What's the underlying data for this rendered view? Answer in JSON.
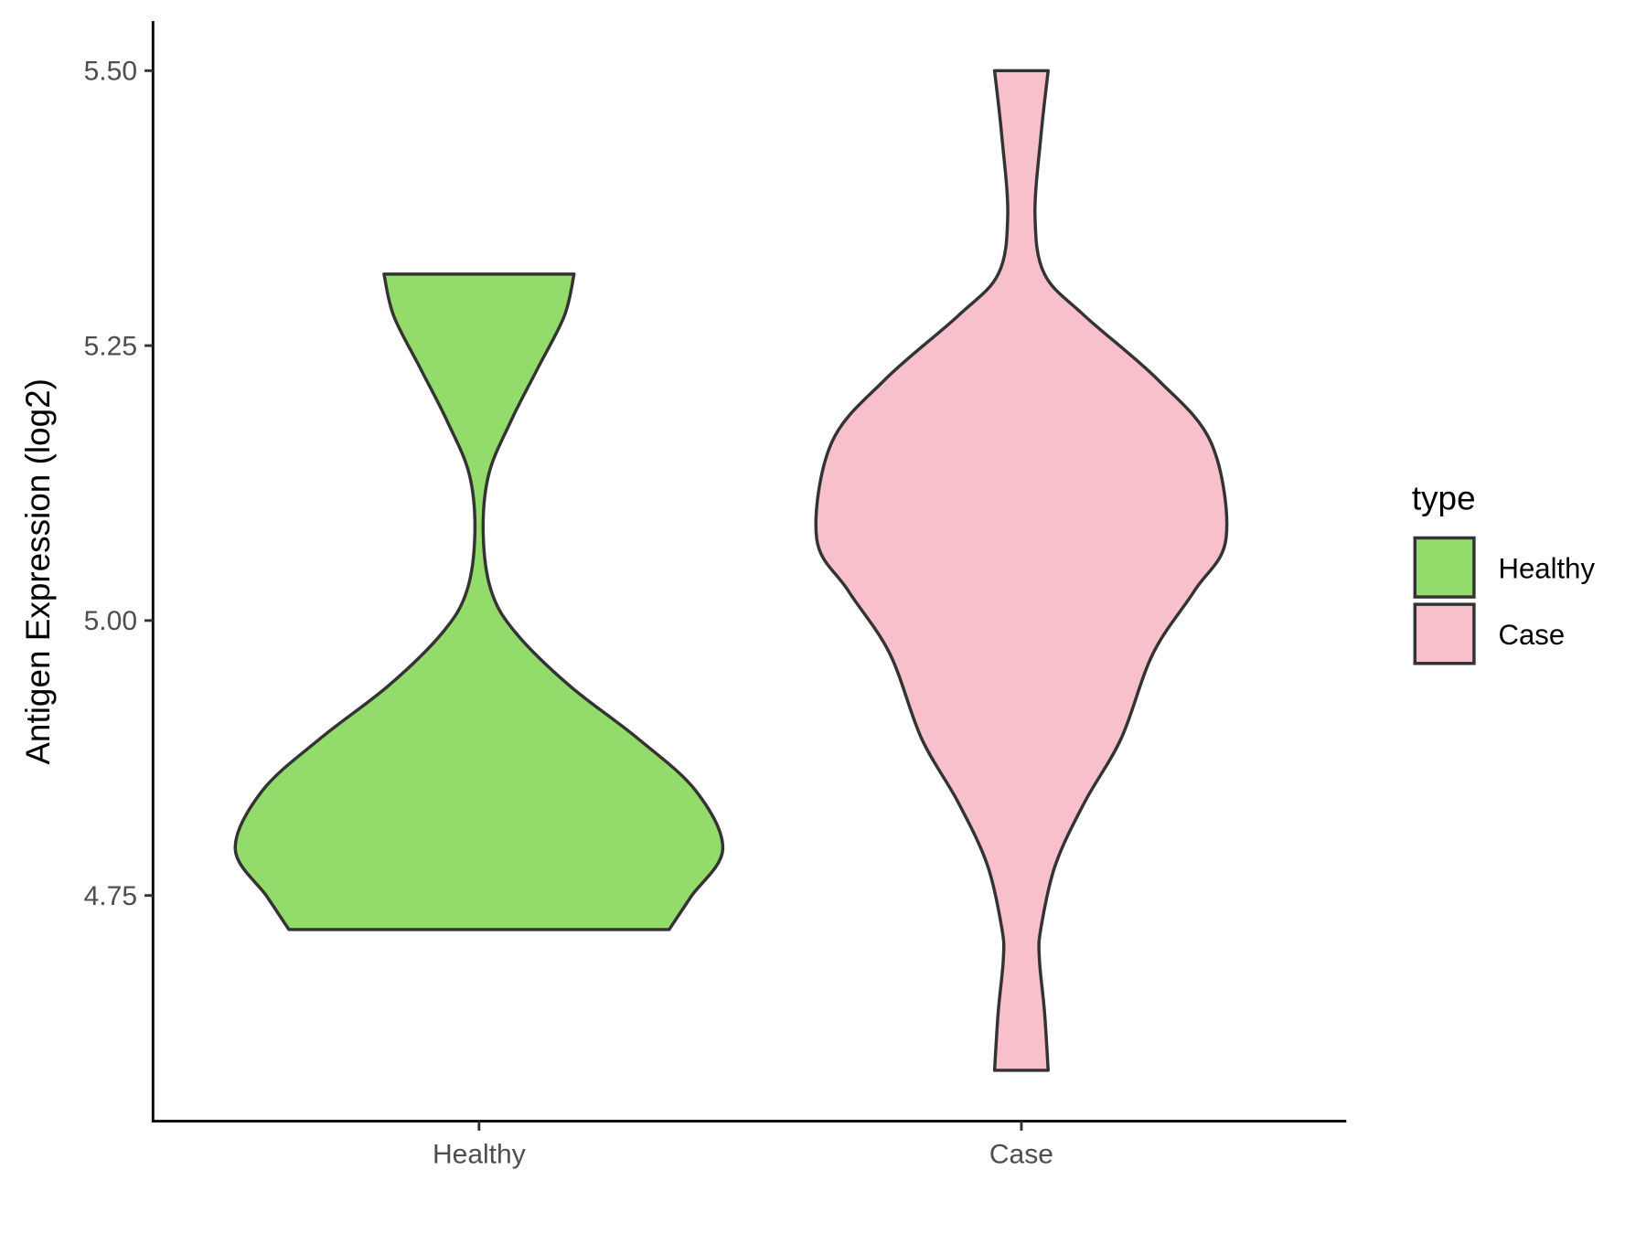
{
  "chart_data": {
    "type": "violin",
    "title": "",
    "xlabel": "",
    "ylabel": "Antigen Expression (log2)",
    "ylim": [
      4.545,
      5.545
    ],
    "yticks": [
      "4.75",
      "5.00",
      "5.25",
      "5.50"
    ],
    "categories": [
      "Healthy",
      "Case"
    ],
    "grid": false,
    "legend": {
      "title": "type",
      "placement": "right",
      "entries": [
        "Healthy",
        "Case"
      ]
    },
    "series": [
      {
        "name": "Healthy",
        "color": "#93DB6B",
        "y": [
          5.315,
          5.277,
          5.229,
          5.181,
          5.133,
          5.08,
          5.027,
          4.989,
          4.941,
          4.893,
          4.845,
          4.792,
          4.749,
          4.719
        ],
        "relative_width": [
          0.39,
          0.35,
          0.24,
          0.13,
          0.04,
          0.017,
          0.05,
          0.15,
          0.37,
          0.65,
          0.89,
          1.0,
          0.87,
          0.78
        ]
      },
      {
        "name": "Case",
        "color": "#F8C0CB",
        "y": [
          5.5,
          5.44,
          5.368,
          5.315,
          5.277,
          5.219,
          5.161,
          5.075,
          5.027,
          4.97,
          4.893,
          4.835,
          4.778,
          4.72,
          4.692,
          4.644,
          4.591
        ],
        "relative_width": [
          0.11,
          0.08,
          0.056,
          0.095,
          0.26,
          0.56,
          0.78,
          0.84,
          0.71,
          0.54,
          0.41,
          0.26,
          0.14,
          0.08,
          0.074,
          0.095,
          0.11
        ]
      }
    ]
  }
}
